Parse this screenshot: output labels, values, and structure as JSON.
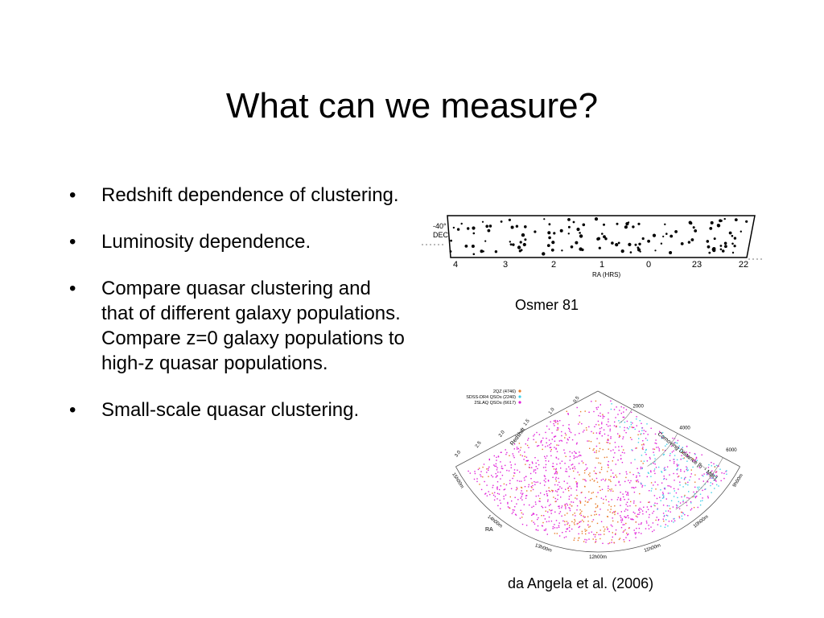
{
  "slide": {
    "title": "What can we measure?",
    "bullets": [
      "Redshift dependence of clustering.",
      "Luminosity dependence.",
      "Compare quasar clustering and that of different galaxy populations. Compare z=0 galaxy populations to high-z quasar populations.",
      "Small-scale quasar clustering."
    ]
  },
  "figure_osmer": {
    "caption": "Osmer 81",
    "dec_label": "-40°",
    "dec_axis": "DEC",
    "ra_ticks": [
      "4",
      "3",
      "2",
      "1",
      "0",
      "23",
      "22"
    ],
    "ra_axis": "RA (HRS)"
  },
  "figure_wedge": {
    "caption": "da Angela et al. (2006)",
    "legend": [
      {
        "label": "2QZ (4746)",
        "color": "#e87c2a"
      },
      {
        "label": "SDSS-DR4 QSOs (2240)",
        "color": "#3fd0e8"
      },
      {
        "label": "2SLAQ QSOs (6617)",
        "color": "#e020d8"
      }
    ],
    "redshift_axis": "Redshift",
    "redshift_ticks": [
      "3.0",
      "2.5",
      "2.0",
      "1.5",
      "1.0",
      "0.5"
    ],
    "distance_axis": "Comoving Distance [h⁻¹ Mpc]",
    "distance_ticks": [
      "2000",
      "4000",
      "6000"
    ],
    "ra_axis": "RA",
    "ra_ticks": [
      "15h00m",
      "14h00m",
      "13h00m",
      "12h00m",
      "11h00m",
      "10h00m",
      "9h00m"
    ]
  }
}
